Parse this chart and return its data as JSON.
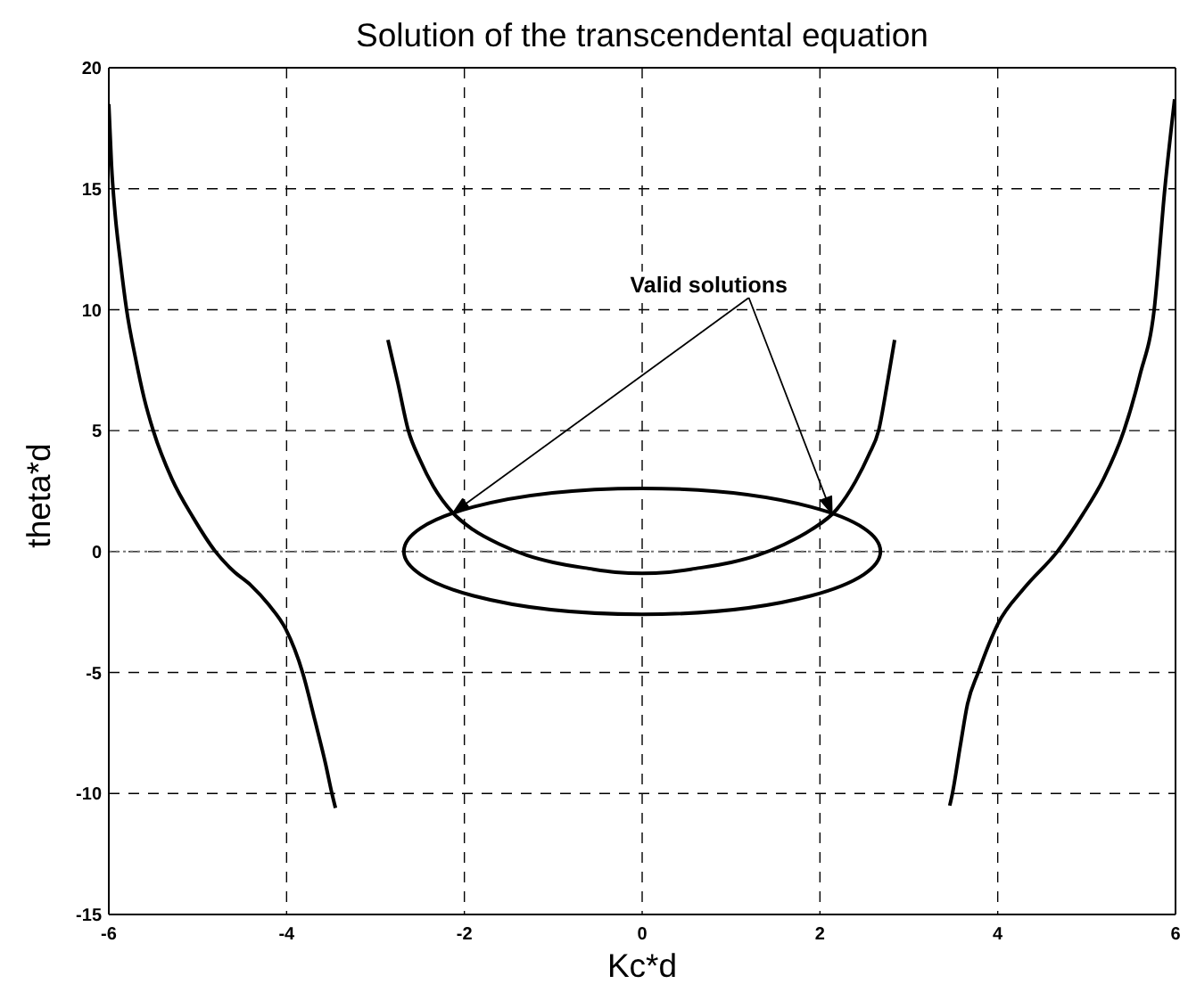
{
  "chart_data": {
    "type": "line",
    "title": "Solution of the transcendental equation",
    "xlabel": "Kc*d",
    "ylabel": "theta*d",
    "xlim": [
      -6,
      6
    ],
    "xticks": [
      -6,
      -4,
      -2,
      0,
      2,
      4,
      6
    ],
    "ylim": [
      -15,
      20
    ],
    "yticks": [
      -15,
      -10,
      -5,
      0,
      5,
      10,
      15,
      20
    ],
    "grid": true,
    "line_style": "solid",
    "ref_lines": [
      {
        "axis": "y",
        "value": 0,
        "color": "#777777",
        "line_style": "dotted"
      }
    ],
    "annotations": [
      "Valid solutions"
    ],
    "series": [
      {
        "color": "#000000",
        "x": [
          -6.0,
          -5.97,
          -5.93,
          -5.87,
          -5.8,
          -5.7,
          -5.6,
          -5.5,
          -5.29,
          -5.05,
          -4.8,
          -4.6,
          -4.4,
          -4.2,
          -4.01,
          -3.82,
          -3.68,
          -3.56,
          -3.49,
          -3.45
        ],
        "values": [
          18.5,
          16,
          14,
          12,
          10,
          8,
          6.3,
          5,
          3,
          1.4,
          0,
          -0.8,
          -1.4,
          -2.2,
          -3.2,
          -5,
          -7,
          -8.8,
          -10,
          -10.6
        ]
      },
      {
        "color": "#000000",
        "x": [
          -2.86,
          -2.75,
          -2.63,
          -2.5,
          -2.35,
          -2.13,
          -1.9,
          -1.6,
          -1.3,
          -1.0,
          -0.6,
          -0.3,
          0,
          0.3,
          0.6,
          1.0,
          1.3,
          1.6,
          1.9,
          2.19,
          2.4,
          2.55,
          2.66,
          2.76,
          2.84
        ],
        "values": [
          8.75,
          7,
          5,
          3.8,
          2.7,
          1.6,
          0.9,
          0.3,
          -0.15,
          -0.45,
          -0.7,
          -0.85,
          -0.9,
          -0.85,
          -0.7,
          -0.45,
          -0.15,
          0.3,
          0.9,
          1.75,
          2.9,
          4.0,
          5,
          7,
          8.75
        ]
      },
      {
        "color": "#000000",
        "x": [
          3.46,
          3.49,
          3.58,
          3.66,
          3.78,
          4.0,
          4.3,
          4.67,
          4.95,
          5.19,
          5.42,
          5.6,
          5.76,
          5.88,
          5.99
        ],
        "values": [
          -10.5,
          -10,
          -8,
          -6.3,
          -5,
          -3,
          -1.5,
          0,
          1.5,
          3,
          5,
          7.3,
          10,
          15,
          18.7
        ]
      }
    ]
  }
}
